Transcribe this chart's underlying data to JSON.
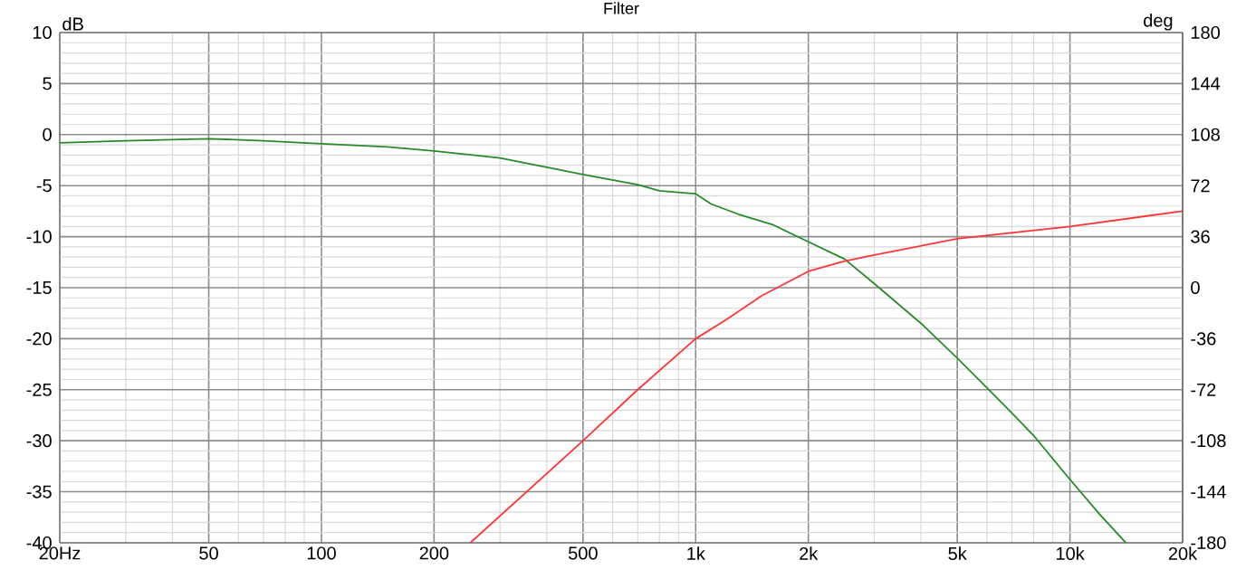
{
  "chart_data": {
    "type": "line",
    "title": "Filter",
    "ylabel": "dB",
    "y2label": "deg",
    "log": "x",
    "grid": true,
    "xlim": [
      20,
      20000
    ],
    "xticks": [
      {
        "value": 20,
        "label": "20Hz"
      },
      50,
      100,
      200,
      500,
      {
        "value": 1000,
        "label": "1k"
      },
      {
        "value": 2000,
        "label": "2k"
      },
      {
        "value": 5000,
        "label": "5k"
      },
      {
        "value": 10000,
        "label": "10k"
      },
      {
        "value": 20000,
        "label": "20k"
      }
    ],
    "ylim": [
      -40,
      10
    ],
    "yticks": [
      -40,
      -35,
      -30,
      -25,
      -20,
      -15,
      -10,
      -5,
      0,
      5,
      10
    ],
    "y2lim": [
      -180,
      180
    ],
    "y2ticks": [
      -180,
      -144,
      -108,
      -72,
      -36,
      0,
      36,
      72,
      108,
      144,
      180
    ],
    "series": [
      {
        "color": "#2a8a2a",
        "x": [
          20,
          30,
          50,
          70,
          100,
          150,
          200,
          300,
          400,
          500,
          700,
          800,
          1000,
          1100,
          1300,
          1600,
          2000,
          2500,
          3000,
          4000,
          5000,
          6000,
          7000,
          8000,
          10000,
          12000,
          14100
        ],
        "values": [
          -0.8,
          -0.6,
          -0.4,
          -0.6,
          -0.9,
          -1.2,
          -1.6,
          -2.3,
          -3.2,
          -3.9,
          -4.9,
          -5.5,
          -5.8,
          -6.8,
          -7.8,
          -8.8,
          -10.5,
          -12.2,
          -14.6,
          -18.5,
          -21.9,
          -24.8,
          -27.3,
          -29.5,
          -33.8,
          -37.2,
          -40
        ]
      },
      {
        "color": "#ff3535",
        "x": [
          250,
          500,
          700,
          1000,
          1200,
          1500,
          2000,
          2500,
          3000,
          5000,
          10000,
          20000
        ],
        "values": [
          -40,
          -30,
          -25,
          -20,
          -18.2,
          -15.8,
          -13.4,
          -12.4,
          -11.8,
          -10.2,
          -9,
          -7.5
        ]
      }
    ]
  }
}
